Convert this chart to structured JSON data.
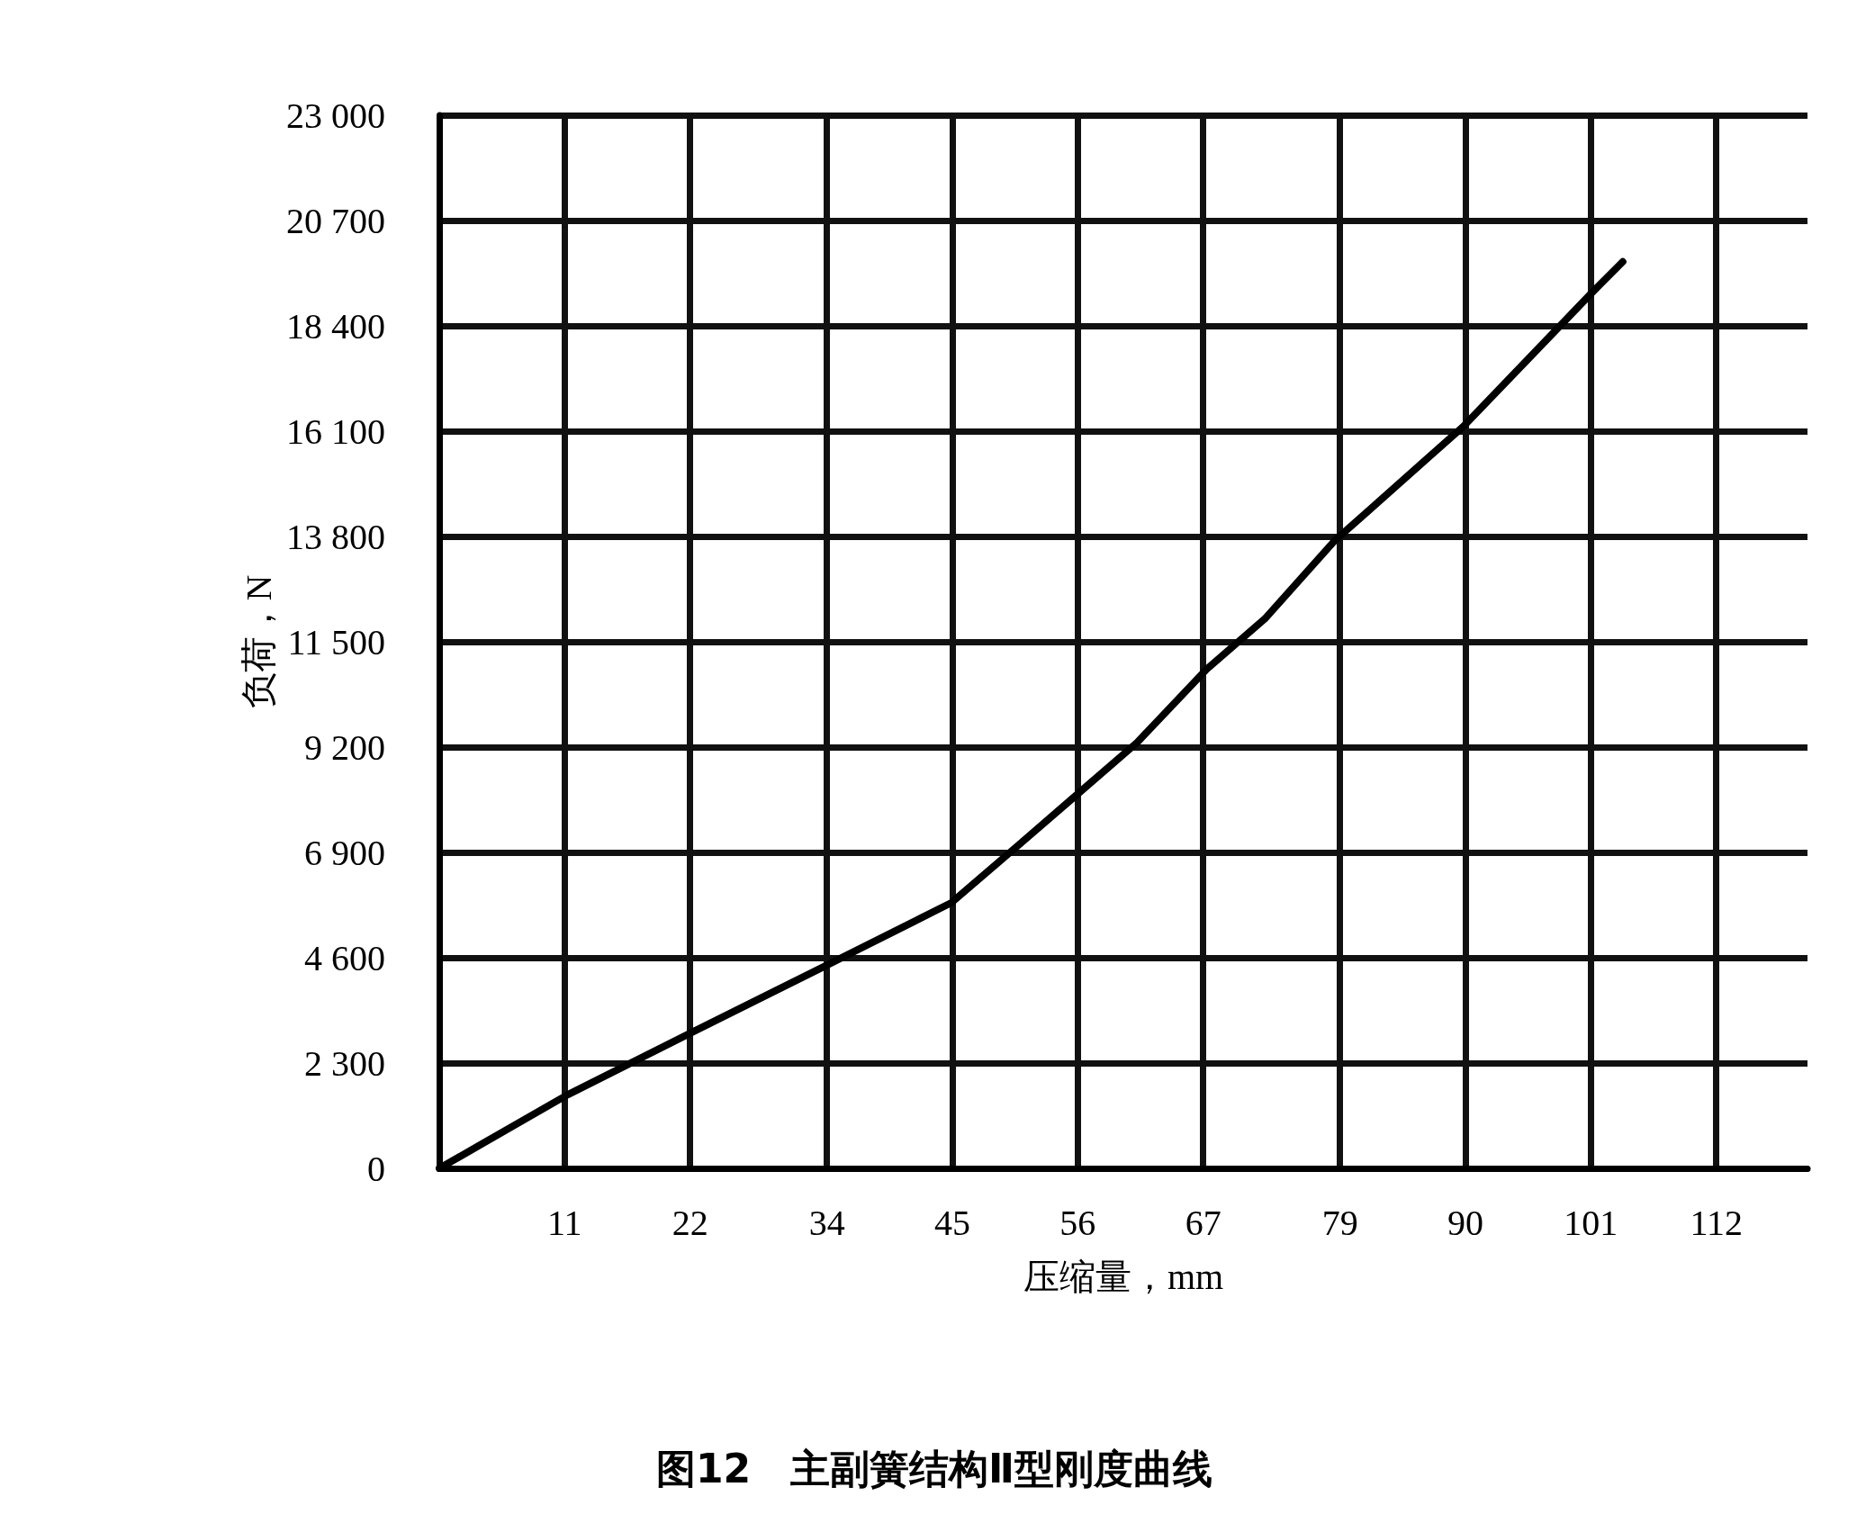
{
  "chart_data": {
    "type": "line",
    "title": "图12　主副簧结构Ⅱ型刚度曲线",
    "xlabel": "压缩量，mm",
    "ylabel": "负荷，N",
    "series": [
      {
        "color": "#000000",
        "x": [
          0,
          11.2,
          22.4,
          33.7,
          44.9,
          51,
          56.1,
          61.2,
          67.3,
          72.4,
          78.5,
          89.8,
          101,
          103.8
        ],
        "values": [
          0,
          1600,
          3000,
          4400,
          5800,
          7100,
          8200,
          9300,
          10900,
          12000,
          13700,
          16200,
          19100,
          19800
        ]
      }
    ],
    "xlim": [
      0,
      120
    ],
    "ylim": [
      0,
      23000
    ],
    "xticks": [
      11,
      22,
      34,
      45,
      56,
      67,
      79,
      90,
      101,
      112
    ],
    "yticks": [
      0,
      {
        "value": 2300,
        "label": "2 300"
      },
      {
        "value": 4600,
        "label": "4 600"
      },
      {
        "value": 6900,
        "label": "6 900"
      },
      {
        "value": 9200,
        "label": "9 200"
      },
      {
        "value": 11500,
        "label": "11 500"
      },
      {
        "value": 13800,
        "label": "13 800"
      },
      {
        "value": 16100,
        "label": "16 100"
      },
      {
        "value": 18400,
        "label": "18 400"
      },
      {
        "value": 20700,
        "label": "20 700"
      },
      {
        "value": 23000,
        "label": "23 000"
      }
    ],
    "grid": true,
    "line_style": "solid"
  }
}
